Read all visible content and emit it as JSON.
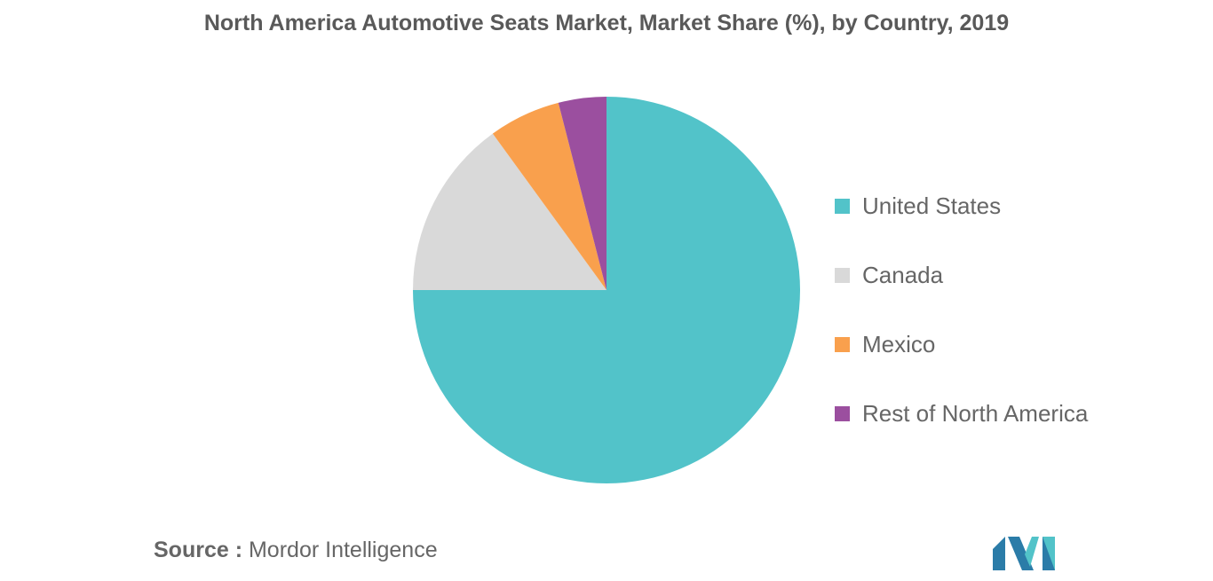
{
  "chart_data": {
    "type": "pie",
    "title": "North America Automotive Seats Market, Market Share (%), by Country, 2019",
    "categories": [
      "United States",
      "Canada",
      "Mexico",
      "Rest of North America"
    ],
    "values": [
      75,
      15,
      6,
      4
    ],
    "colors": [
      "#52c3c9",
      "#d9d9d9",
      "#f9a04d",
      "#9b4f9f"
    ],
    "legend_position": "right"
  },
  "source": {
    "prefix": "Source :",
    "text": "Mordor Intelligence"
  },
  "logo": {
    "colors": [
      "#2b7ca8",
      "#52c3c9"
    ]
  }
}
